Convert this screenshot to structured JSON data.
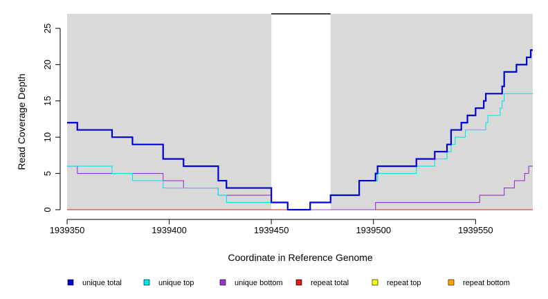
{
  "chart_data": {
    "type": "line",
    "xlabel": "Coordinate in Reference Genome",
    "ylabel": "Read Coverage Depth",
    "xlim": [
      1939350,
      1939578
    ],
    "ylim": [
      0,
      27
    ],
    "x_ticks": [
      1939350,
      1939400,
      1939450,
      1939500,
      1939550
    ],
    "y_ticks": [
      0,
      5,
      10,
      15,
      20,
      25
    ],
    "background_color": "#d9d9d9",
    "unshaded_region": [
      1939450,
      1939479
    ],
    "step": true,
    "legend_position": "bottom",
    "series": [
      {
        "name": "unique total",
        "color": "#0000cd",
        "x": [
          1939350,
          1939355,
          1939372,
          1939382,
          1939397,
          1939407,
          1939424,
          1939428,
          1939450,
          1939458,
          1939469,
          1939479,
          1939493,
          1939501,
          1939502,
          1939521,
          1939530,
          1939536,
          1939538,
          1939543,
          1939546,
          1939550,
          1939554,
          1939555,
          1939563,
          1939564,
          1939570,
          1939575,
          1939577,
          1939578
        ],
        "y": [
          12,
          11,
          10,
          9,
          7,
          6,
          4,
          3,
          1,
          0,
          1,
          2,
          4,
          5,
          6,
          7,
          8,
          9,
          11,
          12,
          13,
          14,
          15,
          16,
          17,
          19,
          20,
          21,
          22,
          22
        ]
      },
      {
        "name": "unique top",
        "color": "#00e5ee",
        "x": [
          1939350,
          1939355,
          1939372,
          1939382,
          1939397,
          1939407,
          1939424,
          1939428,
          1939450,
          1939458,
          1939469,
          1939479,
          1939493,
          1939502,
          1939521,
          1939530,
          1939536,
          1939538,
          1939540,
          1939545,
          1939555,
          1939556,
          1939562,
          1939563,
          1939564,
          1939578
        ],
        "y": [
          6,
          6,
          5,
          4,
          3,
          3,
          2,
          1,
          1,
          0,
          1,
          2,
          4,
          5,
          6,
          7,
          8,
          9,
          10,
          11,
          12,
          13,
          14,
          15,
          16,
          16
        ]
      },
      {
        "name": "unique bottom",
        "color": "#9932cc",
        "x": [
          1939350,
          1939355,
          1939397,
          1939407,
          1939424,
          1939450,
          1939458,
          1939501,
          1939552,
          1939564,
          1939569,
          1939574,
          1939576,
          1939578
        ],
        "y": [
          6,
          5,
          4,
          3,
          2,
          1,
          0,
          1,
          2,
          3,
          4,
          5,
          6,
          6
        ]
      },
      {
        "name": "repeat total",
        "color": "#e31a1c",
        "x": [
          1939350,
          1939578
        ],
        "y": [
          0,
          0
        ]
      },
      {
        "name": "repeat top",
        "color": "#ffff00",
        "x": [
          1939350,
          1939578
        ],
        "y": [
          0,
          0
        ]
      },
      {
        "name": "repeat bottom",
        "color": "#ffa500",
        "x": [
          1939350,
          1939578
        ],
        "y": [
          0,
          0
        ]
      }
    ]
  }
}
